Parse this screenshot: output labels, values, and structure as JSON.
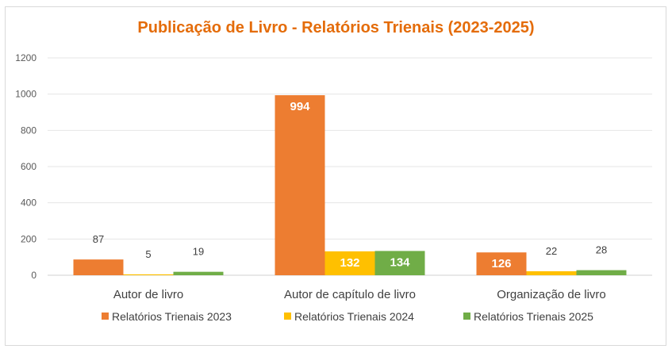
{
  "chart_data": {
    "type": "bar",
    "title": "Publicação de Livro - Relatórios Trienais (2023-2025)",
    "categories": [
      "Autor de livro",
      "Autor de capítulo de livro",
      "Organização de livro"
    ],
    "series": [
      {
        "name": "Relatórios Trienais 2023",
        "values": [
          87,
          994,
          126
        ],
        "color": "#ED7D31"
      },
      {
        "name": "Relatórios Trienais 2024",
        "values": [
          5,
          132,
          22
        ],
        "color": "#FFC000"
      },
      {
        "name": "Relatórios Trienais 2025",
        "values": [
          19,
          134,
          28
        ],
        "color": "#70AD47"
      }
    ],
    "yticks": [
      0,
      200,
      400,
      600,
      800,
      1000,
      1200
    ],
    "ylim": [
      0,
      1200
    ],
    "xlabel": "",
    "ylabel": "",
    "grid": true,
    "legend": "bottom"
  }
}
